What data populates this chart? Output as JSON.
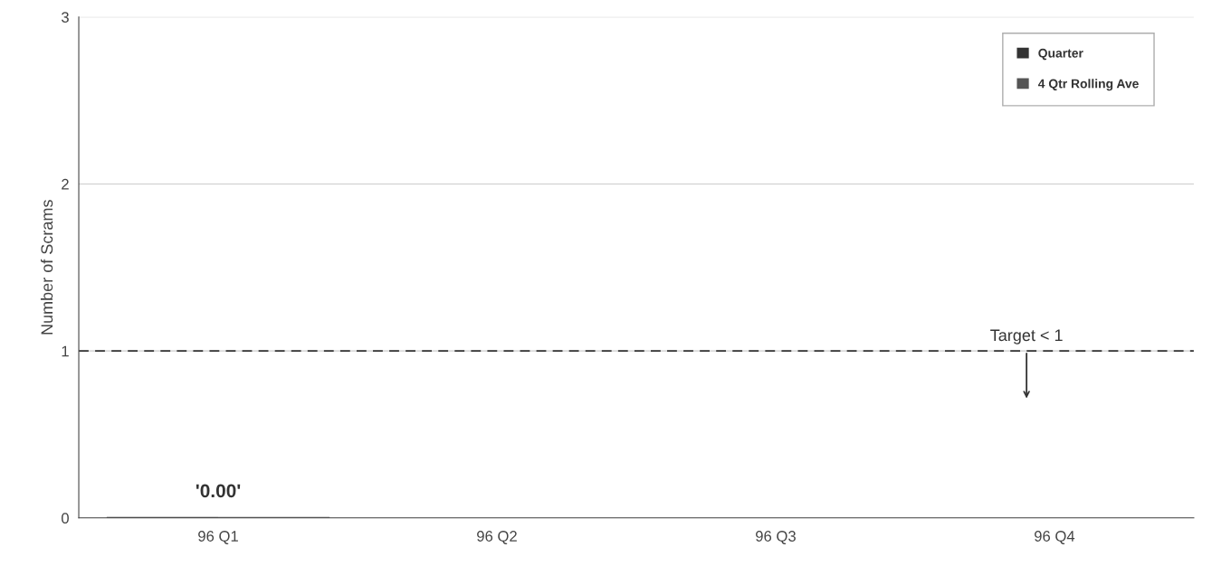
{
  "chart_data": {
    "type": "bar",
    "ylabel": "Number of Scrams",
    "categories": [
      "96 Q1",
      "96 Q2",
      "96 Q3",
      "96 Q4"
    ],
    "series": [
      {
        "name": "Quarter",
        "color": "#333333",
        "values": [
          0,
          null,
          null,
          null
        ],
        "value_labels": [
          "'0.00'",
          null,
          null,
          null
        ]
      },
      {
        "name": "4 Qtr Rolling Ave",
        "color": "#555555",
        "values": [
          0,
          null,
          null,
          null
        ]
      }
    ],
    "ylim": [
      0,
      3
    ],
    "yticks": [
      0,
      1,
      2,
      3
    ],
    "grid": "y",
    "legend": "top right",
    "ref_lines": [
      {
        "axis": "y",
        "value": 1,
        "label": "Target < 1",
        "color": "#333333",
        "line_style": "dashed"
      }
    ]
  }
}
